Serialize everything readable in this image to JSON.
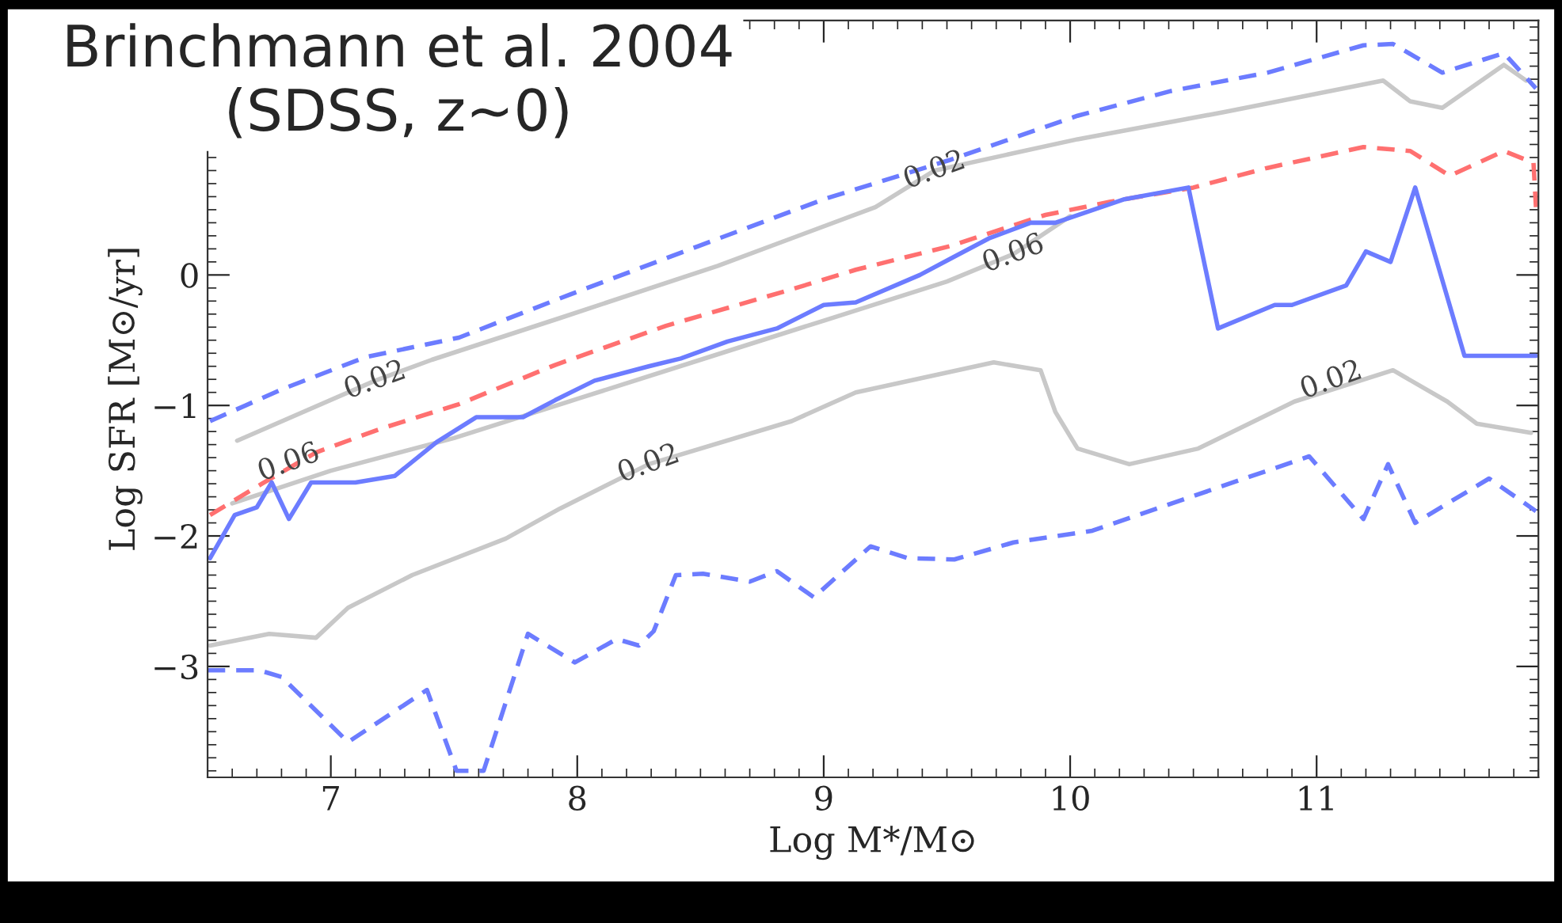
{
  "chart_data": {
    "type": "line",
    "title": "Brinchmann et al. 2004\n(SDSS, z~0)",
    "xlabel": "Log M*/M⊙",
    "ylabel": "Log SFR [M⊙/yr]",
    "xlim": [
      6.5,
      11.9
    ],
    "ylim": [
      -3.85,
      1.95
    ],
    "xticks": [
      7,
      8,
      9,
      10,
      11
    ],
    "yticks": [
      {
        "value": -3,
        "label": "−3"
      },
      {
        "value": -2,
        "label": "−2"
      },
      {
        "value": -1,
        "label": "−1"
      },
      0
    ],
    "grid": false,
    "legend": false,
    "marker": "none",
    "series": [
      {
        "color": "#c8c8c8",
        "line_style": "solid",
        "x": [
          6.51,
          6.75,
          6.94,
          7.07,
          7.33,
          7.71,
          7.93,
          8.29,
          8.87,
          9.13,
          9.69,
          9.88,
          9.94,
          10.03,
          10.24,
          10.52,
          10.91,
          11.31,
          11.53,
          11.65,
          11.87
        ],
        "values": [
          -2.84,
          -2.75,
          -2.78,
          -2.55,
          -2.3,
          -2.02,
          -1.79,
          -1.45,
          -1.12,
          -0.9,
          -0.67,
          -0.73,
          -1.05,
          -1.33,
          -1.45,
          -1.33,
          -0.97,
          -0.73,
          -0.97,
          -1.14,
          -1.21
        ]
      },
      {
        "color": "#c8c8c8",
        "line_style": "solid",
        "x": [
          6.62,
          7.18,
          7.41,
          7.93,
          8.57,
          9.21,
          9.45,
          10.03,
          10.63,
          11.27,
          11.38,
          11.51,
          11.76,
          11.85
        ],
        "values": [
          -1.27,
          -0.81,
          -0.65,
          -0.33,
          0.07,
          0.52,
          0.8,
          1.04,
          1.25,
          1.49,
          1.33,
          1.28,
          1.61,
          1.49
        ]
      },
      {
        "color": "#c8c8c8",
        "line_style": "solid",
        "x": [
          6.6,
          7.0,
          7.5,
          8.0,
          8.5,
          9.0,
          9.5,
          9.77,
          10.0
        ],
        "values": [
          -1.75,
          -1.5,
          -1.25,
          -0.95,
          -0.65,
          -0.35,
          -0.05,
          0.16,
          0.45
        ]
      },
      {
        "color": "#ff7070",
        "line_style": "dashed",
        "x": [
          6.51,
          6.72,
          6.94,
          7.2,
          7.52,
          7.91,
          8.36,
          8.87,
          9.13,
          9.51,
          9.9,
          10.16,
          10.5,
          10.8,
          11.19,
          11.38,
          11.54,
          11.76,
          11.88,
          11.89
        ],
        "values": [
          -1.84,
          -1.6,
          -1.36,
          -1.18,
          -0.99,
          -0.69,
          -0.39,
          -0.11,
          0.04,
          0.22,
          0.46,
          0.56,
          0.67,
          0.82,
          0.98,
          0.95,
          0.76,
          0.95,
          0.86,
          0.52
        ]
      },
      {
        "color": "#6c7cff",
        "line_style": "dashed",
        "x": [
          6.51,
          6.81,
          7.14,
          7.52,
          7.97,
          8.49,
          9.0,
          9.51,
          10.03,
          10.41,
          10.8,
          11.19,
          11.31,
          11.51,
          11.76,
          11.89
        ],
        "values": [
          -1.12,
          -0.87,
          -0.63,
          -0.48,
          -0.15,
          0.22,
          0.58,
          0.88,
          1.22,
          1.41,
          1.55,
          1.76,
          1.77,
          1.55,
          1.7,
          1.43
        ]
      },
      {
        "color": "#6c7cff",
        "line_style": "dashed",
        "x": [
          6.5,
          6.71,
          6.8,
          7.07,
          7.39,
          7.51,
          7.62,
          7.8,
          7.99,
          8.16,
          8.25,
          8.31,
          8.4,
          8.51,
          8.7,
          8.81,
          8.96,
          9.19,
          9.34,
          9.53,
          9.77,
          10.09,
          10.46,
          10.97,
          11.19,
          11.29,
          11.4,
          11.7,
          11.89
        ],
        "values": [
          -3.03,
          -3.03,
          -3.08,
          -3.58,
          -3.18,
          -3.8,
          -3.8,
          -2.75,
          -2.97,
          -2.79,
          -2.84,
          -2.73,
          -2.3,
          -2.29,
          -2.35,
          -2.27,
          -2.47,
          -2.08,
          -2.17,
          -2.18,
          -2.05,
          -1.96,
          -1.72,
          -1.39,
          -1.87,
          -1.45,
          -1.9,
          -1.56,
          -1.81
        ]
      },
      {
        "color": "#6c7cff",
        "line_style": "solid",
        "x": [
          6.51,
          6.61,
          6.7,
          6.76,
          6.83,
          6.92,
          7.1,
          7.26,
          7.43,
          7.59,
          7.78,
          7.91,
          8.07,
          8.29,
          8.42,
          8.61,
          8.81,
          9.0,
          9.13,
          9.39,
          9.51,
          9.67,
          9.84,
          9.94,
          10.22,
          10.48,
          10.6,
          10.83,
          10.9,
          11.12,
          11.2,
          11.3,
          11.4,
          11.6,
          11.89
        ],
        "values": [
          -2.17,
          -1.84,
          -1.78,
          -1.59,
          -1.87,
          -1.59,
          -1.59,
          -1.54,
          -1.28,
          -1.09,
          -1.09,
          -0.96,
          -0.81,
          -0.7,
          -0.64,
          -0.51,
          -0.41,
          -0.23,
          -0.21,
          0.0,
          0.12,
          0.28,
          0.4,
          0.4,
          0.58,
          0.67,
          -0.41,
          -0.23,
          -0.23,
          -0.08,
          0.18,
          0.1,
          0.67,
          -0.62,
          -0.62
        ]
      }
    ],
    "annotations": [
      {
        "text": "0.02",
        "x": 7.18,
        "y": -0.81
      },
      {
        "text": "0.06",
        "x": 6.83,
        "y": -1.44
      },
      {
        "text": "0.02",
        "x": 8.29,
        "y": -1.45
      },
      {
        "text": "0.02",
        "x": 9.45,
        "y": 0.8
      },
      {
        "text": "0.06",
        "x": 9.77,
        "y": 0.16
      },
      {
        "text": "0.02",
        "x": 11.06,
        "y": -0.81
      }
    ]
  }
}
